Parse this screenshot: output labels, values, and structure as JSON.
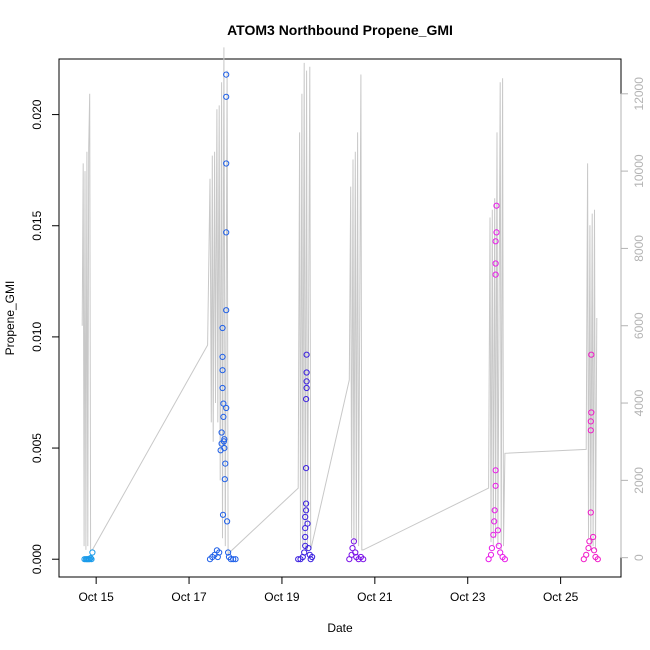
{
  "chart_data": {
    "type": "scatter",
    "title": "ATOM3 Northbound Propene_GMI",
    "xlabel": "Date",
    "ylabel": "Propene_GMI",
    "x_ticks": [
      "Oct 15",
      "Oct 17",
      "Oct 19",
      "Oct 21",
      "Oct 23",
      "Oct 25"
    ],
    "y_ticks": [
      "0.000",
      "0.005",
      "0.010",
      "0.015",
      "0.020"
    ],
    "y_tick_values": [
      0,
      0.005,
      0.01,
      0.015,
      0.02
    ],
    "y2_ticks": [
      "0",
      "2000",
      "4000",
      "6000",
      "8000",
      "10000",
      "12000"
    ],
    "y2_tick_values": [
      0,
      2000,
      4000,
      6000,
      8000,
      10000,
      12000
    ],
    "x_tick_values": [
      15,
      17,
      19,
      21,
      23,
      25
    ],
    "xlim": [
      14.2,
      26.3
    ],
    "ylim": [
      -0.0008,
      0.0225
    ],
    "y2lim": [
      -500,
      12900
    ],
    "grid": false,
    "legend": "none",
    "colors": {
      "altitude_line": "#c8c8c8",
      "flight_1": "#1a9bea",
      "flight_2": "#1e5fe8",
      "flight_3": "#3a1fe0",
      "flight_4": "#7a10e8",
      "flight_5": "#e81be8",
      "flight_6": "#f01ac8"
    },
    "series": [
      {
        "role": "Propene_GMI",
        "points": [
          {
            "x": 14.75,
            "y": 0.0,
            "c": "flight_1"
          },
          {
            "x": 14.78,
            "y": 0.0,
            "c": "flight_1"
          },
          {
            "x": 14.8,
            "y": 0.0,
            "c": "flight_1"
          },
          {
            "x": 14.82,
            "y": 0.0,
            "c": "flight_1"
          },
          {
            "x": 14.84,
            "y": 0.0,
            "c": "flight_1"
          },
          {
            "x": 14.86,
            "y": 0.0,
            "c": "flight_1"
          },
          {
            "x": 14.88,
            "y": 5e-05,
            "c": "flight_1"
          },
          {
            "x": 14.9,
            "y": 0.0,
            "c": "flight_1"
          },
          {
            "x": 14.92,
            "y": 0.0003,
            "c": "flight_1"
          },
          {
            "x": 17.45,
            "y": 0.0,
            "c": "flight_2"
          },
          {
            "x": 17.5,
            "y": 0.0001,
            "c": "flight_2"
          },
          {
            "x": 17.55,
            "y": 0.0002,
            "c": "flight_2"
          },
          {
            "x": 17.6,
            "y": 0.0004,
            "c": "flight_2"
          },
          {
            "x": 17.62,
            "y": 0.0001,
            "c": "flight_2"
          },
          {
            "x": 17.65,
            "y": 0.0003,
            "c": "flight_2"
          },
          {
            "x": 17.68,
            "y": 0.0049,
            "c": "flight_2"
          },
          {
            "x": 17.7,
            "y": 0.0052,
            "c": "flight_2"
          },
          {
            "x": 17.7,
            "y": 0.0057,
            "c": "flight_2"
          },
          {
            "x": 17.72,
            "y": 0.0077,
            "c": "flight_2"
          },
          {
            "x": 17.72,
            "y": 0.0085,
            "c": "flight_2"
          },
          {
            "x": 17.72,
            "y": 0.0091,
            "c": "flight_2"
          },
          {
            "x": 17.72,
            "y": 0.0104,
            "c": "flight_2"
          },
          {
            "x": 17.74,
            "y": 0.007,
            "c": "flight_2"
          },
          {
            "x": 17.74,
            "y": 0.0064,
            "c": "flight_2"
          },
          {
            "x": 17.75,
            "y": 0.0053,
            "c": "flight_2"
          },
          {
            "x": 17.76,
            "y": 0.0054,
            "c": "flight_2"
          },
          {
            "x": 17.76,
            "y": 0.005,
            "c": "flight_2"
          },
          {
            "x": 17.73,
            "y": 0.002,
            "c": "flight_2"
          },
          {
            "x": 17.77,
            "y": 0.0036,
            "c": "flight_2"
          },
          {
            "x": 17.78,
            "y": 0.0043,
            "c": "flight_2"
          },
          {
            "x": 17.8,
            "y": 0.0068,
            "c": "flight_2"
          },
          {
            "x": 17.8,
            "y": 0.0112,
            "c": "flight_2"
          },
          {
            "x": 17.8,
            "y": 0.0147,
            "c": "flight_2"
          },
          {
            "x": 17.8,
            "y": 0.0178,
            "c": "flight_2"
          },
          {
            "x": 17.8,
            "y": 0.0208,
            "c": "flight_2"
          },
          {
            "x": 17.8,
            "y": 0.0218,
            "c": "flight_2"
          },
          {
            "x": 17.82,
            "y": 0.0017,
            "c": "flight_2"
          },
          {
            "x": 17.84,
            "y": 0.0003,
            "c": "flight_2"
          },
          {
            "x": 17.86,
            "y": 0.0001,
            "c": "flight_2"
          },
          {
            "x": 17.9,
            "y": 0.0,
            "c": "flight_2"
          },
          {
            "x": 17.95,
            "y": 0.0,
            "c": "flight_2"
          },
          {
            "x": 18.0,
            "y": 0.0,
            "c": "flight_2"
          },
          {
            "x": 19.35,
            "y": 0.0,
            "c": "flight_3"
          },
          {
            "x": 19.4,
            "y": 0.0,
            "c": "flight_3"
          },
          {
            "x": 19.45,
            "y": 0.0001,
            "c": "flight_3"
          },
          {
            "x": 19.48,
            "y": 0.0003,
            "c": "flight_3"
          },
          {
            "x": 19.5,
            "y": 0.0006,
            "c": "flight_3"
          },
          {
            "x": 19.5,
            "y": 0.001,
            "c": "flight_3"
          },
          {
            "x": 19.5,
            "y": 0.0014,
            "c": "flight_3"
          },
          {
            "x": 19.5,
            "y": 0.0019,
            "c": "flight_3"
          },
          {
            "x": 19.52,
            "y": 0.0022,
            "c": "flight_3"
          },
          {
            "x": 19.52,
            "y": 0.0025,
            "c": "flight_3"
          },
          {
            "x": 19.52,
            "y": 0.0041,
            "c": "flight_3"
          },
          {
            "x": 19.52,
            "y": 0.0072,
            "c": "flight_3"
          },
          {
            "x": 19.53,
            "y": 0.0077,
            "c": "flight_3"
          },
          {
            "x": 19.53,
            "y": 0.008,
            "c": "flight_3"
          },
          {
            "x": 19.53,
            "y": 0.0084,
            "c": "flight_3"
          },
          {
            "x": 19.53,
            "y": 0.0092,
            "c": "flight_3"
          },
          {
            "x": 19.55,
            "y": 0.0016,
            "c": "flight_3"
          },
          {
            "x": 19.57,
            "y": 0.0005,
            "c": "flight_3"
          },
          {
            "x": 19.6,
            "y": 0.0002,
            "c": "flight_3"
          },
          {
            "x": 19.62,
            "y": 0.0,
            "c": "flight_3"
          },
          {
            "x": 19.65,
            "y": 0.0001,
            "c": "flight_3"
          },
          {
            "x": 20.45,
            "y": 0.0,
            "c": "flight_4"
          },
          {
            "x": 20.5,
            "y": 0.0002,
            "c": "flight_4"
          },
          {
            "x": 20.52,
            "y": 0.0005,
            "c": "flight_4"
          },
          {
            "x": 20.55,
            "y": 0.0008,
            "c": "flight_4"
          },
          {
            "x": 20.58,
            "y": 0.0003,
            "c": "flight_4"
          },
          {
            "x": 20.6,
            "y": 0.0001,
            "c": "flight_4"
          },
          {
            "x": 20.65,
            "y": 0.0,
            "c": "flight_4"
          },
          {
            "x": 20.7,
            "y": 0.0001,
            "c": "flight_4"
          },
          {
            "x": 20.75,
            "y": 0.0,
            "c": "flight_4"
          },
          {
            "x": 23.45,
            "y": 0.0,
            "c": "flight_5"
          },
          {
            "x": 23.5,
            "y": 0.0002,
            "c": "flight_5"
          },
          {
            "x": 23.52,
            "y": 0.0005,
            "c": "flight_5"
          },
          {
            "x": 23.55,
            "y": 0.0011,
            "c": "flight_5"
          },
          {
            "x": 23.57,
            "y": 0.0017,
            "c": "flight_5"
          },
          {
            "x": 23.58,
            "y": 0.0022,
            "c": "flight_5"
          },
          {
            "x": 23.6,
            "y": 0.0033,
            "c": "flight_5"
          },
          {
            "x": 23.6,
            "y": 0.004,
            "c": "flight_5"
          },
          {
            "x": 23.6,
            "y": 0.0128,
            "c": "flight_5"
          },
          {
            "x": 23.6,
            "y": 0.0133,
            "c": "flight_5"
          },
          {
            "x": 23.6,
            "y": 0.0143,
            "c": "flight_5"
          },
          {
            "x": 23.62,
            "y": 0.0147,
            "c": "flight_5"
          },
          {
            "x": 23.62,
            "y": 0.0159,
            "c": "flight_5"
          },
          {
            "x": 23.65,
            "y": 0.0013,
            "c": "flight_5"
          },
          {
            "x": 23.67,
            "y": 0.0006,
            "c": "flight_5"
          },
          {
            "x": 23.7,
            "y": 0.0003,
            "c": "flight_5"
          },
          {
            "x": 23.75,
            "y": 0.0001,
            "c": "flight_5"
          },
          {
            "x": 23.8,
            "y": 0.0,
            "c": "flight_5"
          },
          {
            "x": 25.5,
            "y": 0.0,
            "c": "flight_6"
          },
          {
            "x": 25.55,
            "y": 0.0002,
            "c": "flight_6"
          },
          {
            "x": 25.6,
            "y": 0.0005,
            "c": "flight_6"
          },
          {
            "x": 25.62,
            "y": 0.0008,
            "c": "flight_6"
          },
          {
            "x": 25.65,
            "y": 0.0021,
            "c": "flight_6"
          },
          {
            "x": 25.65,
            "y": 0.0058,
            "c": "flight_6"
          },
          {
            "x": 25.65,
            "y": 0.0062,
            "c": "flight_6"
          },
          {
            "x": 25.66,
            "y": 0.0066,
            "c": "flight_6"
          },
          {
            "x": 25.66,
            "y": 0.0092,
            "c": "flight_6"
          },
          {
            "x": 25.7,
            "y": 0.001,
            "c": "flight_6"
          },
          {
            "x": 25.72,
            "y": 0.0004,
            "c": "flight_6"
          },
          {
            "x": 25.75,
            "y": 0.0001,
            "c": "flight_6"
          },
          {
            "x": 25.8,
            "y": 0.0,
            "c": "flight_6"
          }
        ]
      },
      {
        "role": "altitude_line",
        "axis": "right",
        "points": [
          {
            "x": 14.7,
            "y": 6000
          },
          {
            "x": 14.72,
            "y": 10200
          },
          {
            "x": 14.74,
            "y": 300
          },
          {
            "x": 14.76,
            "y": 10000
          },
          {
            "x": 14.78,
            "y": 200
          },
          {
            "x": 14.8,
            "y": 10500
          },
          {
            "x": 14.82,
            "y": 300
          },
          {
            "x": 14.84,
            "y": 10600
          },
          {
            "x": 14.86,
            "y": 12000
          },
          {
            "x": 14.88,
            "y": 200
          },
          {
            "x": 14.92,
            "y": 200
          },
          {
            "x": 17.4,
            "y": 5500
          },
          {
            "x": 17.45,
            "y": 9800
          },
          {
            "x": 17.48,
            "y": 3500
          },
          {
            "x": 17.5,
            "y": 10400
          },
          {
            "x": 17.52,
            "y": 3000
          },
          {
            "x": 17.55,
            "y": 10500
          },
          {
            "x": 17.57,
            "y": 4000
          },
          {
            "x": 17.6,
            "y": 11600
          },
          {
            "x": 17.62,
            "y": 3500
          },
          {
            "x": 17.65,
            "y": 11700
          },
          {
            "x": 17.67,
            "y": 2000
          },
          {
            "x": 17.7,
            "y": 12300
          },
          {
            "x": 17.72,
            "y": 500
          },
          {
            "x": 17.75,
            "y": 13200
          },
          {
            "x": 17.78,
            "y": 300
          },
          {
            "x": 17.82,
            "y": 12600
          },
          {
            "x": 17.84,
            "y": 100
          },
          {
            "x": 19.35,
            "y": 1800
          },
          {
            "x": 19.38,
            "y": 11000
          },
          {
            "x": 19.4,
            "y": 200
          },
          {
            "x": 19.43,
            "y": 12000
          },
          {
            "x": 19.45,
            "y": 300
          },
          {
            "x": 19.48,
            "y": 12800
          },
          {
            "x": 19.5,
            "y": 200
          },
          {
            "x": 19.53,
            "y": 12600
          },
          {
            "x": 19.55,
            "y": 200
          },
          {
            "x": 19.6,
            "y": 12700
          },
          {
            "x": 19.62,
            "y": 200
          },
          {
            "x": 20.45,
            "y": 4600
          },
          {
            "x": 20.48,
            "y": 9600
          },
          {
            "x": 20.5,
            "y": 500
          },
          {
            "x": 20.53,
            "y": 10300
          },
          {
            "x": 20.55,
            "y": 300
          },
          {
            "x": 20.58,
            "y": 10500
          },
          {
            "x": 20.6,
            "y": 400
          },
          {
            "x": 20.63,
            "y": 11000
          },
          {
            "x": 20.65,
            "y": 300
          },
          {
            "x": 20.7,
            "y": 12500
          },
          {
            "x": 20.72,
            "y": 200
          },
          {
            "x": 20.75,
            "y": 200
          },
          {
            "x": 23.45,
            "y": 1800
          },
          {
            "x": 23.48,
            "y": 8800
          },
          {
            "x": 23.5,
            "y": 400
          },
          {
            "x": 23.53,
            "y": 9000
          },
          {
            "x": 23.55,
            "y": 300
          },
          {
            "x": 23.58,
            "y": 9300
          },
          {
            "x": 23.6,
            "y": 500
          },
          {
            "x": 23.63,
            "y": 11000
          },
          {
            "x": 23.65,
            "y": 300
          },
          {
            "x": 23.7,
            "y": 12300
          },
          {
            "x": 23.72,
            "y": 200
          },
          {
            "x": 23.75,
            "y": 12400
          },
          {
            "x": 23.77,
            "y": 300
          },
          {
            "x": 23.8,
            "y": 2700
          },
          {
            "x": 25.55,
            "y": 2800
          },
          {
            "x": 25.58,
            "y": 10200
          },
          {
            "x": 25.6,
            "y": 500
          },
          {
            "x": 25.63,
            "y": 8600
          },
          {
            "x": 25.65,
            "y": 200
          },
          {
            "x": 25.68,
            "y": 8900
          },
          {
            "x": 25.7,
            "y": 300
          },
          {
            "x": 25.73,
            "y": 9000
          },
          {
            "x": 25.75,
            "y": 200
          },
          {
            "x": 25.78,
            "y": 6200
          }
        ]
      }
    ]
  }
}
